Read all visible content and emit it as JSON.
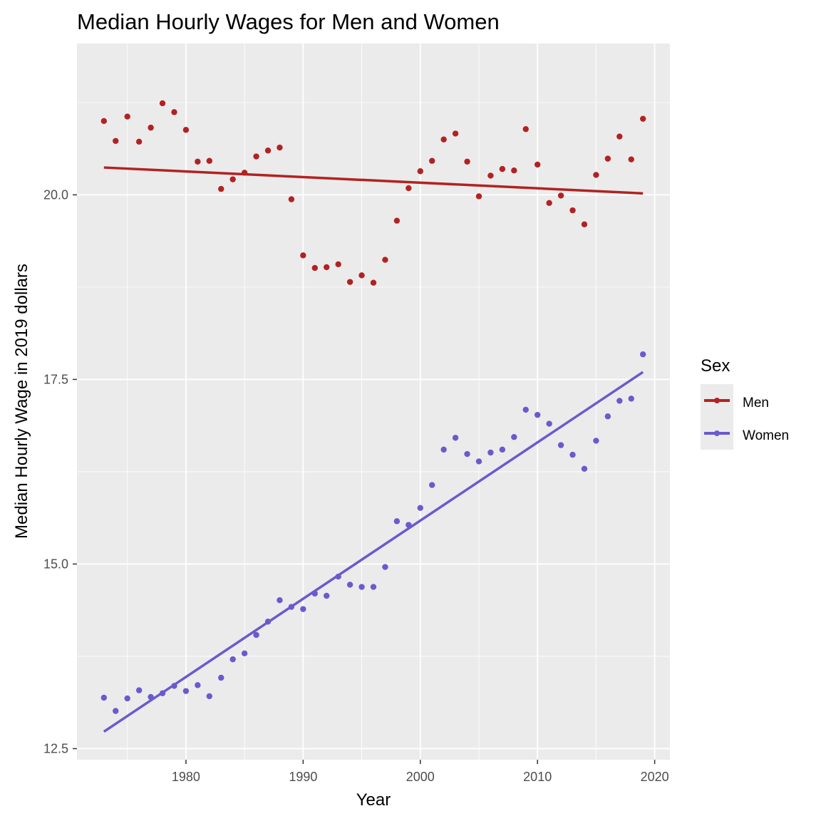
{
  "chart_data": {
    "type": "scatter",
    "title": "Median Hourly Wages for Men and Women",
    "xlabel": "Year",
    "ylabel": "Median Hourly Wage in 2019 dollars",
    "xlim": [
      1970.7,
      2021.3
    ],
    "ylim": [
      12.35,
      22.05
    ],
    "x_ticks": [
      1980,
      1990,
      2000,
      2010,
      2020
    ],
    "x_tick_labels": [
      "1980",
      "1990",
      "2000",
      "2010",
      "2020"
    ],
    "y_ticks": [
      12.5,
      15.0,
      17.5,
      20.0
    ],
    "y_tick_labels": [
      "12.5",
      "15.0",
      "17.5",
      "20.0"
    ],
    "grid": true,
    "legend": {
      "title": "Sex",
      "position": "right"
    },
    "x": [
      1973,
      1974,
      1975,
      1976,
      1977,
      1978,
      1979,
      1980,
      1981,
      1982,
      1983,
      1984,
      1985,
      1986,
      1987,
      1988,
      1989,
      1990,
      1991,
      1992,
      1993,
      1994,
      1995,
      1996,
      1997,
      1998,
      1999,
      2000,
      2001,
      2002,
      2003,
      2004,
      2005,
      2006,
      2007,
      2008,
      2009,
      2010,
      2011,
      2012,
      2013,
      2014,
      2015,
      2016,
      2017,
      2018,
      2019
    ],
    "series": [
      {
        "name": "Men",
        "color": "#b22222",
        "values": [
          21.0,
          20.73,
          21.06,
          20.72,
          20.91,
          21.24,
          21.12,
          20.88,
          20.45,
          20.46,
          20.08,
          20.21,
          20.3,
          20.52,
          20.6,
          20.64,
          19.94,
          19.18,
          19.01,
          19.02,
          19.06,
          18.82,
          18.91,
          18.81,
          19.12,
          19.65,
          20.09,
          20.32,
          20.46,
          20.75,
          20.83,
          20.45,
          19.98,
          20.26,
          20.35,
          20.33,
          20.89,
          20.41,
          19.89,
          19.99,
          19.79,
          19.6,
          20.27,
          20.49,
          20.79,
          20.48,
          21.03
        ],
        "trend": [
          20.37,
          20.02
        ]
      },
      {
        "name": "Women",
        "color": "#6a5acd",
        "values": [
          13.19,
          13.01,
          13.18,
          13.29,
          13.2,
          13.25,
          13.35,
          13.28,
          13.36,
          13.21,
          13.46,
          13.71,
          13.79,
          14.04,
          14.22,
          14.51,
          14.42,
          14.39,
          14.6,
          14.57,
          14.83,
          14.72,
          14.69,
          14.69,
          14.96,
          15.58,
          15.53,
          15.76,
          16.07,
          16.55,
          16.71,
          16.49,
          16.39,
          16.51,
          16.55,
          16.72,
          17.09,
          17.02,
          16.9,
          16.61,
          16.48,
          16.29,
          16.67,
          17.0,
          17.21,
          17.24,
          17.84
        ],
        "trend": [
          12.73,
          17.6
        ]
      }
    ]
  }
}
